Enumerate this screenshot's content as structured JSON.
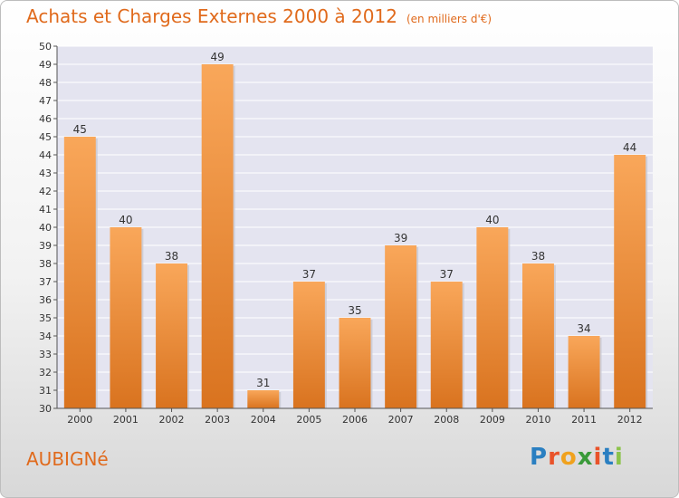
{
  "title": "Achats et Charges Externes 2000 à 2012",
  "subtitle": "(en milliers d'€)",
  "commune": "AUBIGNé",
  "logo": {
    "letters": [
      "P",
      "r",
      "o",
      "x",
      "i",
      "t",
      "i"
    ],
    "colors": [
      "#2a7fc1",
      "#e9532a",
      "#f0a21e",
      "#3a9a3a",
      "#e9532a",
      "#2a7fc1",
      "#8bc34a"
    ]
  },
  "colors": {
    "bar_light": "#f9a75a",
    "bar_dark": "#d9731f",
    "accent": "#e06a1c",
    "plot_background": "#e4e4f0",
    "grid": "#ffffff"
  },
  "chart_data": {
    "type": "bar",
    "categories": [
      "2000",
      "2001",
      "2002",
      "2003",
      "2004",
      "2005",
      "2006",
      "2007",
      "2008",
      "2009",
      "2010",
      "2011",
      "2012"
    ],
    "values": [
      45,
      40,
      38,
      49,
      31,
      37,
      35,
      39,
      37,
      40,
      38,
      34,
      44
    ],
    "data_labels": [
      "45",
      "40",
      "38",
      "49",
      "31",
      "37",
      "35",
      "39",
      "37",
      "40",
      "38",
      "34",
      "44"
    ],
    "y_ticks": [
      "30",
      "31",
      "32",
      "33",
      "34",
      "35",
      "36",
      "37",
      "38",
      "39",
      "40",
      "41",
      "42",
      "43",
      "44",
      "45",
      "46",
      "47",
      "48",
      "49",
      "50"
    ],
    "ylim": [
      30,
      50
    ],
    "grid": true,
    "legend": "none"
  }
}
